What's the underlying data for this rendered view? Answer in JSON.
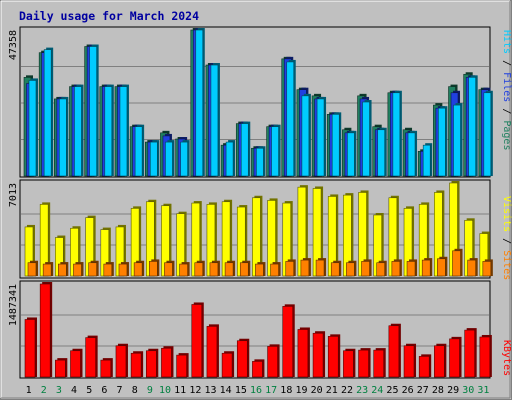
{
  "title": "Daily usage for March 2024",
  "colors": {
    "background": "#c0c0c0",
    "hits": "#00ccff",
    "files": "#2040e0",
    "pages": "#208060",
    "visits": "#ffff00",
    "sites": "#ff8000",
    "kbytes": "#ff0000",
    "weekend_label": "#008040",
    "weekday_label": "#000000"
  },
  "legends": {
    "pages": "Pages",
    "files": "Files",
    "hits": "Hits",
    "sites": "Sites",
    "visits": "Visits",
    "kbytes": "KBytes",
    "sep": " / "
  },
  "chart_data": {
    "type": "bar",
    "title": "Daily usage for March 2024",
    "categories": [
      "1",
      "2",
      "3",
      "4",
      "5",
      "6",
      "7",
      "8",
      "9",
      "10",
      "11",
      "12",
      "13",
      "14",
      "15",
      "16",
      "17",
      "18",
      "19",
      "20",
      "21",
      "22",
      "23",
      "24",
      "25",
      "26",
      "27",
      "28",
      "29",
      "30",
      "31"
    ],
    "weekend_days": [
      "2",
      "3",
      "9",
      "10",
      "16",
      "17",
      "23",
      "24",
      "30",
      "31"
    ],
    "panels": [
      {
        "name": "hits_files_pages",
        "ymax_label": "47358",
        "ylim": [
          0,
          47358
        ],
        "series": [
          {
            "name": "Pages",
            "values": [
              32000,
              40000,
              25000,
              29000,
              42000,
              29000,
              29000,
              16000,
              11000,
              14000,
              12000,
              47358,
              36000,
              10000,
              17000,
              9000,
              16000,
              38000,
              28000,
              26000,
              20000,
              15000,
              26000,
              16000,
              27000,
              15000,
              8000,
              23000,
              29000,
              33000,
              28000
            ]
          },
          {
            "name": "Files",
            "values": [
              30000,
              40000,
              25000,
              29000,
              42000,
              29000,
              29000,
              16000,
              11000,
              13000,
              12000,
              47358,
              36000,
              10000,
              17000,
              9000,
              16000,
              38000,
              28000,
              25000,
              20000,
              14000,
              25000,
              15000,
              27000,
              14000,
              8000,
              22000,
              27000,
              32000,
              28000
            ]
          },
          {
            "name": "Hits",
            "values": [
              31000,
              41000,
              25000,
              29000,
              42000,
              29000,
              29000,
              16000,
              11000,
              11000,
              11000,
              47358,
              36000,
              11000,
              17000,
              9000,
              16000,
              37000,
              26000,
              25000,
              20000,
              14000,
              24000,
              15000,
              27000,
              14000,
              10000,
              22000,
              23000,
              32000,
              27000
            ]
          }
        ]
      },
      {
        "name": "visits_sites",
        "ymax_label": "7013",
        "ylim": [
          0,
          7013
        ],
        "series": [
          {
            "name": "Visits",
            "values": [
              3700,
              5400,
              2900,
              3600,
              4400,
              3500,
              3700,
              5100,
              5600,
              5300,
              4700,
              5500,
              5400,
              5600,
              5200,
              5900,
              5700,
              5500,
              6700,
              6600,
              6000,
              6100,
              6300,
              4600,
              5900,
              5100,
              5400,
              6300,
              7013,
              4200,
              3200
            ]
          },
          {
            "name": "Sites",
            "values": [
              1000,
              900,
              900,
              900,
              1000,
              900,
              900,
              1000,
              1100,
              1000,
              900,
              1000,
              1000,
              1000,
              1000,
              900,
              900,
              1100,
              1200,
              1200,
              1000,
              1000,
              1100,
              1000,
              1100,
              1100,
              1200,
              1300,
              1900,
              1200,
              1100
            ]
          }
        ]
      },
      {
        "name": "kbytes",
        "ymax_label": "1487341",
        "ylim": [
          0,
          1487341
        ],
        "series": [
          {
            "name": "KBytes",
            "values": [
              920000,
              1487341,
              270000,
              420000,
              630000,
              270000,
              500000,
              380000,
              420000,
              460000,
              350000,
              1160000,
              810000,
              380000,
              580000,
              250000,
              490000,
              1130000,
              760000,
              700000,
              650000,
              420000,
              430000,
              430000,
              820000,
              500000,
              330000,
              500000,
              610000,
              750000,
              640000
            ]
          }
        ]
      }
    ]
  }
}
